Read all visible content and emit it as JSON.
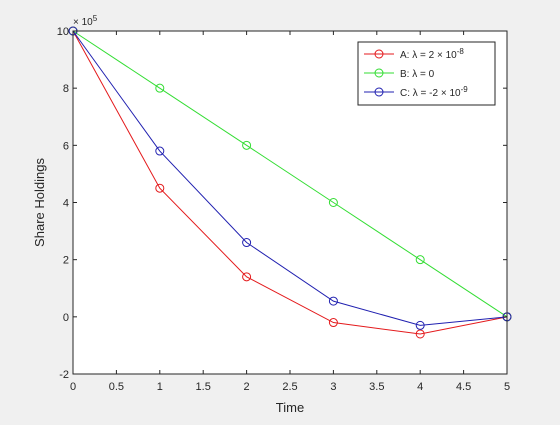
{
  "chart_data": {
    "type": "line",
    "title": "",
    "xlabel": "Time",
    "ylabel": "Share Holdings",
    "y_exponent_label": "× 10",
    "y_exponent": "5",
    "xlim": [
      0,
      5
    ],
    "ylim": [
      -200000,
      1000000
    ],
    "x_ticks": [
      0,
      0.5,
      1,
      1.5,
      2,
      2.5,
      3,
      3.5,
      4,
      4.5,
      5
    ],
    "x_tick_labels": [
      "0",
      "0.5",
      "1",
      "1.5",
      "2",
      "2.5",
      "3",
      "3.5",
      "4",
      "4.5",
      "5"
    ],
    "y_ticks": [
      -200000,
      0,
      200000,
      400000,
      600000,
      800000,
      1000000
    ],
    "y_tick_labels": [
      "-2",
      "0",
      "2",
      "4",
      "6",
      "8",
      "10"
    ],
    "grid": false,
    "legend_position": "top-right",
    "x": [
      0,
      1,
      2,
      3,
      4,
      5
    ],
    "series": [
      {
        "name": "A: λ = 2 × 10^-8",
        "legend_main": "A: λ = 2 × 10",
        "legend_sup": "-8",
        "color": "#e41a1c",
        "marker": "circle",
        "values": [
          1000000,
          450000,
          140000,
          -20000,
          -60000,
          0
        ]
      },
      {
        "name": "B: λ = 0",
        "legend_main": "B: λ = 0",
        "legend_sup": "",
        "color": "#33dd33",
        "marker": "circle",
        "values": [
          1000000,
          800000,
          600000,
          400000,
          200000,
          0
        ]
      },
      {
        "name": "C: λ = -2 × 10^-9",
        "legend_main": "C: λ = -2 × 10",
        "legend_sup": "-9",
        "color": "#2020b0",
        "marker": "circle",
        "values": [
          1000000,
          580000,
          260000,
          55000,
          -30000,
          0
        ]
      }
    ]
  }
}
